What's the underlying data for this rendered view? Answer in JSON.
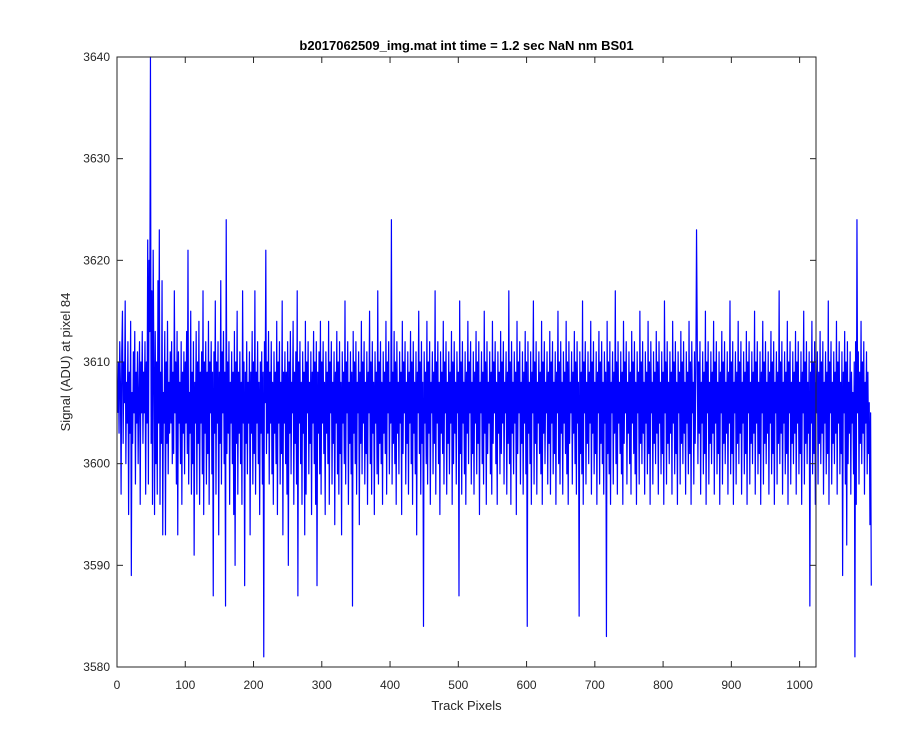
{
  "chart_data": {
    "type": "line",
    "title": "b2017062509_img.mat int time = 1.2 sec  NaN nm BS01",
    "xlabel": "Track Pixels",
    "ylabel": "Signal (ADU) at pixel 84",
    "xlim": [
      0,
      1024
    ],
    "ylim": [
      3580,
      3640
    ],
    "xticks": [
      0,
      100,
      200,
      300,
      400,
      500,
      600,
      700,
      800,
      900,
      1000
    ],
    "yticks": [
      3580,
      3590,
      3600,
      3610,
      3620,
      3630,
      3640
    ],
    "grid": false,
    "line_color": "#0000ff",
    "series": [
      {
        "x_start": 1,
        "x_step": 1,
        "values": [
          3605,
          3610,
          3603,
          3612,
          3608,
          3597,
          3611,
          3615,
          3602,
          3610,
          3606,
          3616,
          3600,
          3608,
          3604,
          3612,
          3595,
          3609,
          3603,
          3614,
          3589,
          3607,
          3602,
          3611,
          3605,
          3613,
          3598,
          3609,
          3604,
          3611,
          3600,
          3607,
          3612,
          3596,
          3610,
          3605,
          3613,
          3602,
          3609,
          3605,
          3612,
          3597,
          3610,
          3604,
          3622,
          3598,
          3620,
          3613,
          3640,
          3602,
          3617,
          3596,
          3621,
          3610,
          3595,
          3613,
          3600,
          3610,
          3597,
          3618,
          3604,
          3623,
          3596,
          3609,
          3602,
          3618,
          3593,
          3607,
          3604,
          3613,
          3593,
          3610,
          3602,
          3614,
          3599,
          3608,
          3603,
          3611,
          3604,
          3612,
          3600,
          3609,
          3601,
          3617,
          3605,
          3610,
          3598,
          3613,
          3593,
          3611,
          3604,
          3608,
          3600,
          3612,
          3596,
          3609,
          3603,
          3611,
          3599,
          3610,
          3604,
          3613,
          3601,
          3621,
          3598,
          3607,
          3603,
          3615,
          3597,
          3609,
          3600,
          3612,
          3591,
          3608,
          3604,
          3613,
          3597,
          3610,
          3602,
          3614,
          3596,
          3609,
          3604,
          3611,
          3599,
          3617,
          3595,
          3610,
          3603,
          3612,
          3598,
          3609,
          3601,
          3614,
          3596,
          3610,
          3605,
          3612,
          3599,
          3609,
          3587,
          3611,
          3603,
          3616,
          3597,
          3610,
          3604,
          3612,
          3593,
          3609,
          3602,
          3618,
          3598,
          3611,
          3605,
          3613,
          3600,
          3609,
          3586,
          3624,
          3601,
          3610,
          3603,
          3612,
          3596,
          3608,
          3604,
          3611,
          3600,
          3609,
          3595,
          3613,
          3590,
          3610,
          3602,
          3615,
          3597,
          3609,
          3603,
          3611,
          3600,
          3608,
          3596,
          3617,
          3604,
          3610,
          3588,
          3609,
          3602,
          3612,
          3599,
          3608,
          3604,
          3611,
          3593,
          3609,
          3603,
          3613,
          3598,
          3610,
          3601,
          3617,
          3597,
          3609,
          3604,
          3612,
          3600,
          3608,
          3595,
          3610,
          3603,
          3611,
          3598,
          3609,
          3581,
          3612,
          3606,
          3621,
          3601,
          3610,
          3603,
          3613,
          3598,
          3609,
          3604,
          3612,
          3599,
          3608,
          3596,
          3611,
          3603,
          3609,
          3600,
          3614,
          3595,
          3610,
          3604,
          3612,
          3598,
          3608,
          3601,
          3616,
          3593,
          3609,
          3604,
          3611,
          3600,
          3609,
          3597,
          3612,
          3590,
          3610,
          3603,
          3613,
          3599,
          3608,
          3605,
          3614,
          3596,
          3609,
          3602,
          3611,
          3598,
          3617,
          3587,
          3610,
          3604,
          3612,
          3600,
          3608,
          3596,
          3611,
          3603,
          3609,
          3593,
          3614,
          3597,
          3610,
          3605,
          3612,
          3599,
          3608,
          3602,
          3611,
          3595,
          3609,
          3604,
          3613,
          3600,
          3610,
          3596,
          3612,
          3588,
          3609,
          3603,
          3611,
          3599,
          3614,
          3597,
          3610,
          3604,
          3612,
          3601,
          3608,
          3595,
          3611,
          3603,
          3609,
          3600,
          3614,
          3596,
          3610,
          3605,
          3612,
          3598,
          3608,
          3602,
          3611,
          3594,
          3609,
          3604,
          3613,
          3599,
          3610,
          3597,
          3612,
          3601,
          3608,
          3593,
          3611,
          3604,
          3609,
          3600,
          3616,
          3598,
          3610,
          3605,
          3612,
          3596,
          3608,
          3602,
          3611,
          3599,
          3609,
          3586,
          3613,
          3603,
          3610,
          3600,
          3612,
          3597,
          3608,
          3605,
          3611,
          3594,
          3609,
          3602,
          3614,
          3599,
          3610,
          3604,
          3612,
          3598,
          3608,
          3601,
          3611,
          3596,
          3609,
          3605,
          3615,
          3600,
          3610,
          3597,
          3612,
          3603,
          3608,
          3595,
          3611,
          3604,
          3609,
          3599,
          3617,
          3598,
          3610,
          3602,
          3612,
          3600,
          3608,
          3596,
          3611,
          3603,
          3609,
          3601,
          3614,
          3597,
          3610,
          3605,
          3612,
          3599,
          3608,
          3604,
          3624,
          3598,
          3609,
          3602,
          3613,
          3600,
          3610,
          3596,
          3612,
          3603,
          3608,
          3599,
          3611,
          3604,
          3609,
          3595,
          3614,
          3601,
          3610,
          3605,
          3612,
          3598,
          3608,
          3602,
          3611,
          3597,
          3609,
          3604,
          3613,
          3600,
          3610,
          3596,
          3612,
          3603,
          3608,
          3599,
          3611,
          3593,
          3609,
          3605,
          3615,
          3601,
          3610,
          3597,
          3612,
          3602,
          3608,
          3584,
          3611,
          3604,
          3609,
          3600,
          3614,
          3598,
          3610,
          3603,
          3612,
          3596,
          3608,
          3605,
          3611,
          3599,
          3609,
          3602,
          3617,
          3597,
          3610,
          3604,
          3612,
          3600,
          3608,
          3595,
          3611,
          3603,
          3609,
          3601,
          3614,
          3598,
          3610,
          3605,
          3612,
          3597,
          3608,
          3602,
          3611,
          3599,
          3609,
          3604,
          3613,
          3596,
          3610,
          3600,
          3612,
          3603,
          3608,
          3598,
          3611,
          3605,
          3609,
          3587,
          3616,
          3601,
          3610,
          3597,
          3612,
          3604,
          3608,
          3599,
          3611,
          3596,
          3609,
          3603,
          3614,
          3600,
          3610,
          3605,
          3612,
          3598,
          3608,
          3601,
          3611,
          3597,
          3609,
          3604,
          3613,
          3599,
          3610,
          3602,
          3612,
          3595,
          3608,
          3605,
          3611,
          3600,
          3609,
          3598,
          3615,
          3603,
          3610,
          3596,
          3612,
          3601,
          3608,
          3604,
          3611,
          3599,
          3609,
          3597,
          3614,
          3602,
          3610,
          3605,
          3612,
          3600,
          3608,
          3596,
          3611,
          3603,
          3609,
          3599,
          3613,
          3601,
          3610,
          3604,
          3612,
          3598,
          3608,
          3605,
          3611,
          3597,
          3609,
          3602,
          3617,
          3600,
          3610,
          3596,
          3612,
          3603,
          3608,
          3599,
          3611,
          3604,
          3609,
          3595,
          3614,
          3601,
          3610,
          3605,
          3612,
          3598,
          3608,
          3602,
          3611,
          3597,
          3609,
          3604,
          3613,
          3599,
          3610,
          3584,
          3612,
          3603,
          3608,
          3600,
          3611,
          3596,
          3609,
          3605,
          3616,
          3598,
          3610,
          3602,
          3612,
          3597,
          3608,
          3604,
          3611,
          3601,
          3609,
          3599,
          3614,
          3596,
          3610,
          3603,
          3612,
          3600,
          3608,
          3605,
          3611,
          3598,
          3609,
          3602,
          3613,
          3597,
          3610,
          3604,
          3612,
          3599,
          3608,
          3601,
          3611,
          3596,
          3609,
          3605,
          3615,
          3600,
          3610,
          3598,
          3612,
          3603,
          3608,
          3597,
          3611,
          3604,
          3609,
          3601,
          3614,
          3599,
          3610,
          3596,
          3612,
          3602,
          3608,
          3605,
          3611,
          3598,
          3609,
          3603,
          3613,
          3600,
          3610,
          3597,
          3612,
          3604,
          3608,
          3585,
          3611,
          3601,
          3609,
          3599,
          3616,
          3596,
          3610,
          3605,
          3612,
          3598,
          3608,
          3602,
          3611,
          3600,
          3609,
          3604,
          3614,
          3597,
          3610,
          3603,
          3612,
          3599,
          3608,
          3601,
          3611,
          3596,
          3609,
          3605,
          3613,
          3598,
          3610,
          3602,
          3612,
          3600,
          3608,
          3597,
          3611,
          3604,
          3609,
          3583,
          3614,
          3601,
          3610,
          3599,
          3612,
          3596,
          3608,
          3605,
          3611,
          3598,
          3609,
          3603,
          3617,
          3600,
          3610,
          3597,
          3612,
          3604,
          3608,
          3601,
          3611,
          3599,
          3609,
          3596,
          3614,
          3602,
          3610,
          3605,
          3612,
          3598,
          3608,
          3603,
          3611,
          3600,
          3609,
          3597,
          3613,
          3604,
          3610,
          3601,
          3612,
          3599,
          3608,
          3596,
          3611,
          3605,
          3609,
          3598,
          3615,
          3602,
          3610,
          3600,
          3612,
          3603,
          3608,
          3597,
          3611,
          3604,
          3609,
          3599,
          3614,
          3601,
          3610,
          3596,
          3612,
          3605,
          3608,
          3598,
          3611,
          3602,
          3609,
          3600,
          3613,
          3603,
          3610,
          3597,
          3612,
          3604,
          3608,
          3599,
          3611,
          3601,
          3609,
          3596,
          3616,
          3605,
          3610,
          3598,
          3612,
          3602,
          3608,
          3600,
          3611,
          3603,
          3609,
          3597,
          3614,
          3604,
          3610,
          3599,
          3612,
          3601,
          3608,
          3596,
          3611,
          3605,
          3609,
          3598,
          3613,
          3602,
          3610,
          3600,
          3612,
          3603,
          3608,
          3597,
          3611,
          3604,
          3609,
          3599,
          3614,
          3601,
          3610,
          3596,
          3612,
          3605,
          3608,
          3598,
          3611,
          3602,
          3609,
          3623,
          3613,
          3600,
          3610,
          3603,
          3612,
          3597,
          3608,
          3604,
          3611,
          3599,
          3609,
          3601,
          3615,
          3596,
          3610,
          3605,
          3612,
          3598,
          3608,
          3602,
          3611,
          3600,
          3609,
          3603,
          3614,
          3597,
          3610,
          3604,
          3612,
          3599,
          3608,
          3601,
          3611,
          3596,
          3609,
          3605,
          3613,
          3598,
          3610,
          3602,
          3612,
          3600,
          3608,
          3603,
          3611,
          3597,
          3609,
          3604,
          3616,
          3599,
          3610,
          3601,
          3612,
          3596,
          3608,
          3605,
          3611,
          3598,
          3609,
          3602,
          3614,
          3600,
          3610,
          3603,
          3612,
          3597,
          3608,
          3604,
          3611,
          3599,
          3609,
          3601,
          3613,
          3596,
          3610,
          3605,
          3612,
          3598,
          3608,
          3602,
          3611,
          3600,
          3609,
          3603,
          3615,
          3597,
          3610,
          3604,
          3612,
          3599,
          3608,
          3601,
          3611,
          3596,
          3609,
          3605,
          3614,
          3598,
          3610,
          3602,
          3612,
          3600,
          3608,
          3603,
          3611,
          3597,
          3609,
          3604,
          3613,
          3599,
          3610,
          3601,
          3612,
          3596,
          3608,
          3605,
          3611,
          3598,
          3609,
          3602,
          3617,
          3600,
          3610,
          3603,
          3612,
          3597,
          3608,
          3604,
          3611,
          3599,
          3609,
          3601,
          3614,
          3596,
          3610,
          3605,
          3612,
          3598,
          3608,
          3602,
          3611,
          3600,
          3609,
          3603,
          3613,
          3597,
          3610,
          3604,
          3612,
          3599,
          3608,
          3601,
          3611,
          3596,
          3609,
          3605,
          3615,
          3598,
          3610,
          3602,
          3612,
          3600,
          3608,
          3603,
          3611,
          3586,
          3609,
          3604,
          3614,
          3599,
          3610,
          3601,
          3612,
          3596,
          3608,
          3605,
          3611,
          3598,
          3609,
          3602,
          3613,
          3600,
          3610,
          3603,
          3612,
          3597,
          3608,
          3604,
          3611,
          3599,
          3609,
          3601,
          3616,
          3596,
          3610,
          3605,
          3612,
          3598,
          3608,
          3602,
          3611,
          3600,
          3609,
          3603,
          3614,
          3597,
          3610,
          3604,
          3612,
          3599,
          3608,
          3601,
          3611,
          3589,
          3609,
          3605,
          3613,
          3598,
          3610,
          3592,
          3612,
          3600,
          3608,
          3603,
          3611,
          3597,
          3609,
          3604,
          3607,
          3599,
          3610,
          3581,
          3612,
          3596,
          3624,
          3605,
          3611,
          3598,
          3609,
          3602,
          3614,
          3600,
          3610,
          3603,
          3612,
          3597,
          3608,
          3604,
          3611,
          3599,
          3609,
          3601,
          3606,
          3594,
          3605,
          3588
        ]
      }
    ]
  }
}
